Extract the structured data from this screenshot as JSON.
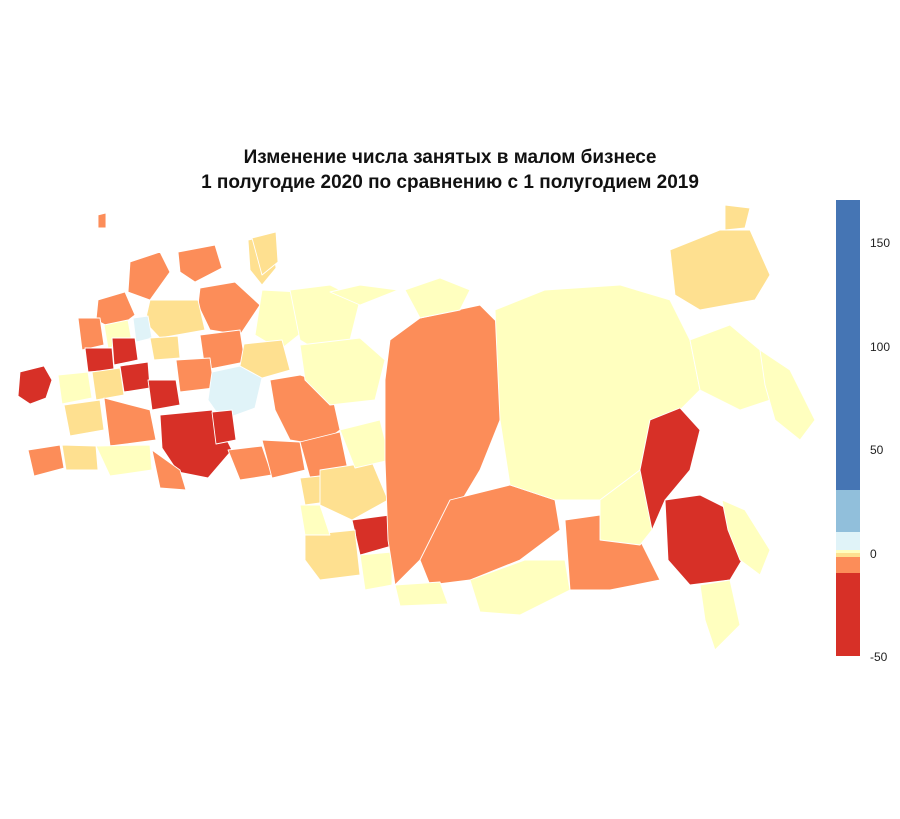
{
  "title": {
    "line1": "Изменение числа занятых в малом бизнесе",
    "line2": "1 полугодие 2020 по сравнению с 1 полугодием 2019"
  },
  "legend": {
    "ticks": [
      "150",
      "100",
      "50",
      "0",
      "-50"
    ],
    "colors": {
      "strong_decline": "#d73027",
      "decline": "#fc8d59",
      "slight_decline": "#fee090",
      "stable": "#ffffbf",
      "slight_growth": "#e0f3f8",
      "growth": "#91bfdb",
      "strong_growth": "#4575b4"
    }
  },
  "colors": {
    "background": "#ffffff",
    "border": "#ffffff"
  }
}
